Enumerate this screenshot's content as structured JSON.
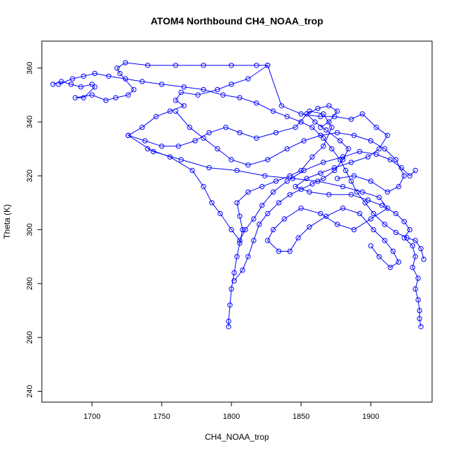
{
  "chart_data": {
    "type": "line",
    "title": "ATOM4 Northbound CH4_NOAA_trop",
    "xlabel": "CH4_NOAA_trop",
    "ylabel": "Theta (K)",
    "xlim": [
      1664,
      1944
    ],
    "ylim": [
      236,
      370
    ],
    "xticks": [
      1700,
      1750,
      1800,
      1850,
      1900
    ],
    "yticks": [
      240,
      260,
      280,
      300,
      320,
      340,
      360
    ],
    "grid": false,
    "legend": "none",
    "marker": "open-circle",
    "color": "#0000ff",
    "series": [
      {
        "values": [
          [
            1672,
            354
          ],
          [
            1678,
            355
          ],
          [
            1685,
            354
          ],
          [
            1692,
            353
          ],
          [
            1700,
            354
          ],
          [
            1702,
            353
          ],
          [
            1694,
            349
          ],
          [
            1688,
            349
          ],
          [
            1700,
            350
          ],
          [
            1710,
            348
          ],
          [
            1717,
            349
          ],
          [
            1726,
            350
          ],
          [
            1730,
            352
          ],
          [
            1720,
            358
          ],
          [
            1718,
            360
          ],
          [
            1724,
            362
          ],
          [
            1740,
            361
          ],
          [
            1760,
            361
          ],
          [
            1780,
            361
          ],
          [
            1800,
            361
          ],
          [
            1818,
            361
          ],
          [
            1826,
            361
          ],
          [
            1812,
            356
          ],
          [
            1800,
            354
          ],
          [
            1790,
            352
          ],
          [
            1776,
            350
          ],
          [
            1764,
            351
          ],
          [
            1760,
            348
          ],
          [
            1766,
            346
          ],
          [
            1756,
            344
          ],
          [
            1746,
            342
          ],
          [
            1736,
            338
          ],
          [
            1726,
            335
          ],
          [
            1738,
            333
          ],
          [
            1750,
            331
          ],
          [
            1762,
            331
          ],
          [
            1774,
            333
          ],
          [
            1784,
            336
          ],
          [
            1796,
            338
          ],
          [
            1806,
            336
          ],
          [
            1818,
            334
          ],
          [
            1832,
            336
          ],
          [
            1846,
            338
          ],
          [
            1856,
            344
          ],
          [
            1866,
            343
          ],
          [
            1872,
            338
          ],
          [
            1866,
            331
          ],
          [
            1858,
            327
          ],
          [
            1850,
            322
          ],
          [
            1842,
            320
          ],
          [
            1832,
            318
          ],
          [
            1822,
            316
          ],
          [
            1812,
            314
          ],
          [
            1804,
            310
          ],
          [
            1806,
            305
          ],
          [
            1808,
            300
          ],
          [
            1806,
            295
          ],
          [
            1804,
            290
          ],
          [
            1802,
            284
          ],
          [
            1800,
            278
          ],
          [
            1799,
            272
          ],
          [
            1798,
            266
          ],
          [
            1798,
            264
          ]
        ]
      },
      {
        "values": [
          [
            1826,
            361
          ],
          [
            1836,
            346
          ],
          [
            1850,
            343
          ],
          [
            1864,
            342
          ],
          [
            1874,
            342
          ],
          [
            1886,
            341
          ],
          [
            1894,
            343
          ],
          [
            1904,
            338
          ],
          [
            1912,
            335
          ],
          [
            1906,
            330
          ],
          [
            1898,
            327
          ],
          [
            1886,
            325
          ],
          [
            1874,
            323
          ],
          [
            1864,
            321
          ],
          [
            1854,
            319
          ],
          [
            1846,
            316
          ],
          [
            1856,
            314
          ],
          [
            1870,
            313
          ],
          [
            1886,
            313
          ],
          [
            1898,
            311
          ],
          [
            1908,
            309
          ],
          [
            1918,
            306
          ],
          [
            1924,
            303
          ],
          [
            1928,
            300
          ],
          [
            1924,
            297
          ],
          [
            1930,
            294
          ],
          [
            1932,
            290
          ],
          [
            1930,
            286
          ],
          [
            1934,
            282
          ],
          [
            1932,
            278
          ],
          [
            1934,
            274
          ],
          [
            1935,
            270
          ],
          [
            1935,
            267
          ],
          [
            1936,
            264
          ]
        ]
      },
      {
        "values": [
          [
            1726,
            335
          ],
          [
            1744,
            329
          ],
          [
            1764,
            326
          ],
          [
            1784,
            323
          ],
          [
            1804,
            322
          ],
          [
            1824,
            320
          ],
          [
            1844,
            319
          ],
          [
            1862,
            318
          ],
          [
            1880,
            316
          ],
          [
            1894,
            314
          ],
          [
            1906,
            312
          ],
          [
            1912,
            308
          ],
          [
            1900,
            304
          ],
          [
            1888,
            300
          ],
          [
            1876,
            302
          ],
          [
            1864,
            306
          ],
          [
            1850,
            308
          ],
          [
            1838,
            304
          ],
          [
            1830,
            300
          ],
          [
            1826,
            296
          ],
          [
            1834,
            292
          ],
          [
            1842,
            292
          ],
          [
            1848,
            297
          ],
          [
            1856,
            301
          ],
          [
            1868,
            305
          ],
          [
            1880,
            308
          ],
          [
            1892,
            306
          ],
          [
            1902,
            300
          ],
          [
            1910,
            296
          ],
          [
            1916,
            292
          ],
          [
            1920,
            288
          ],
          [
            1914,
            286
          ],
          [
            1906,
            290
          ],
          [
            1900,
            294
          ]
        ]
      },
      {
        "values": [
          [
            1740,
            330
          ],
          [
            1756,
            327
          ],
          [
            1772,
            322
          ],
          [
            1780,
            316
          ],
          [
            1786,
            310
          ],
          [
            1792,
            306
          ],
          [
            1800,
            300
          ],
          [
            1806,
            296
          ],
          [
            1810,
            300
          ],
          [
            1816,
            304
          ],
          [
            1822,
            309
          ],
          [
            1830,
            314
          ],
          [
            1840,
            318
          ],
          [
            1852,
            322
          ],
          [
            1866,
            325
          ],
          [
            1880,
            327
          ],
          [
            1892,
            329
          ],
          [
            1904,
            328
          ],
          [
            1914,
            326
          ],
          [
            1922,
            323
          ],
          [
            1928,
            320
          ],
          [
            1932,
            322
          ]
        ]
      },
      {
        "values": [
          [
            1760,
            344
          ],
          [
            1770,
            338
          ],
          [
            1780,
            334
          ],
          [
            1790,
            330
          ],
          [
            1800,
            326
          ],
          [
            1812,
            324
          ],
          [
            1826,
            326
          ],
          [
            1840,
            330
          ],
          [
            1852,
            333
          ],
          [
            1864,
            335
          ],
          [
            1876,
            336
          ],
          [
            1888,
            335
          ],
          [
            1900,
            333
          ],
          [
            1910,
            330
          ],
          [
            1918,
            326
          ],
          [
            1924,
            320
          ],
          [
            1920,
            316
          ],
          [
            1912,
            314
          ],
          [
            1900,
            318
          ],
          [
            1888,
            320
          ],
          [
            1876,
            319
          ]
        ]
      },
      {
        "values": [
          [
            1676,
            354
          ],
          [
            1686,
            356
          ],
          [
            1694,
            357
          ],
          [
            1702,
            358
          ],
          [
            1712,
            357
          ],
          [
            1724,
            356
          ],
          [
            1736,
            355
          ],
          [
            1750,
            354
          ],
          [
            1766,
            353
          ],
          [
            1780,
            352
          ],
          [
            1794,
            350
          ],
          [
            1806,
            349
          ],
          [
            1818,
            347
          ],
          [
            1830,
            344
          ],
          [
            1840,
            342
          ],
          [
            1850,
            340
          ],
          [
            1858,
            338
          ],
          [
            1866,
            334
          ],
          [
            1872,
            330
          ],
          [
            1878,
            326
          ],
          [
            1882,
            322
          ],
          [
            1886,
            318
          ],
          [
            1890,
            314
          ],
          [
            1896,
            310
          ],
          [
            1902,
            306
          ],
          [
            1910,
            302
          ],
          [
            1918,
            299
          ],
          [
            1926,
            297
          ],
          [
            1932,
            296
          ],
          [
            1936,
            293
          ],
          [
            1938,
            289
          ]
        ]
      },
      {
        "values": [
          [
            1802,
            281
          ],
          [
            1808,
            285
          ],
          [
            1812,
            290
          ],
          [
            1816,
            296
          ],
          [
            1820,
            302
          ],
          [
            1826,
            306
          ],
          [
            1834,
            310
          ],
          [
            1842,
            313
          ],
          [
            1850,
            315
          ],
          [
            1858,
            317
          ],
          [
            1866,
            319
          ],
          [
            1874,
            322
          ],
          [
            1880,
            326
          ],
          [
            1884,
            330
          ],
          [
            1878,
            333
          ],
          [
            1868,
            337
          ],
          [
            1860,
            340
          ],
          [
            1854,
            343
          ],
          [
            1862,
            345
          ],
          [
            1870,
            346
          ],
          [
            1876,
            344
          ],
          [
            1870,
            340
          ],
          [
            1864,
            338
          ]
        ]
      }
    ]
  }
}
